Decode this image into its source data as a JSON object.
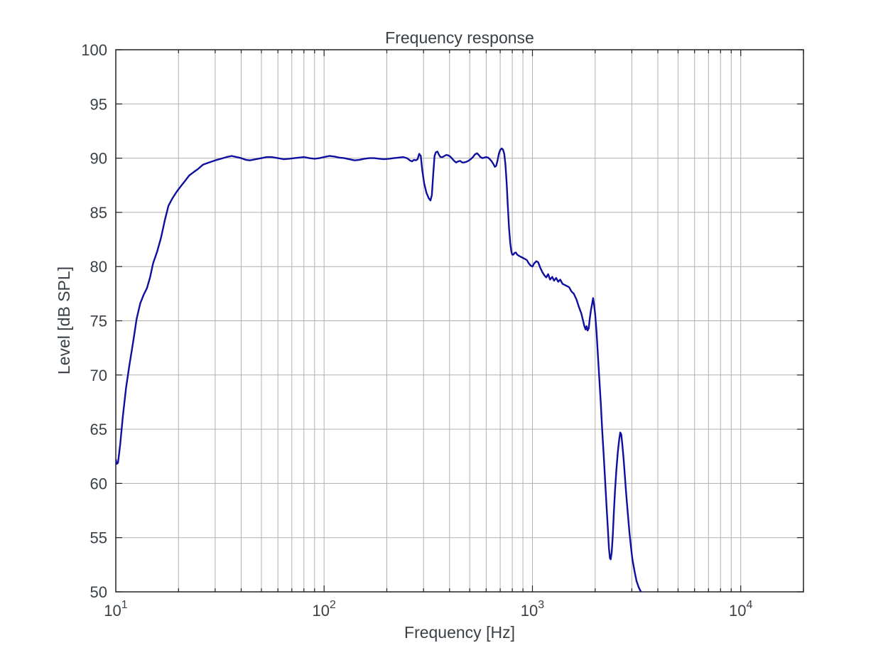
{
  "chart": {
    "title": "Frequency response",
    "xlabel": "Frequency [Hz]",
    "ylabel": "Level [dB SPL]"
  },
  "colors": {
    "line": "#0f0fa0",
    "grid": "#b0b0b0",
    "axis": "#222222",
    "text": "#3a4045",
    "background": "#ffffff"
  },
  "chart_data": {
    "type": "line",
    "title": "Frequency response",
    "xlabel": "Frequency [Hz]",
    "ylabel": "Level [dB SPL]",
    "xscale": "log",
    "xlim": [
      10,
      20000
    ],
    "ylim": [
      50,
      100
    ],
    "grid": true,
    "legend": "none",
    "x_major_ticks": [
      10,
      100,
      1000,
      10000
    ],
    "x_tick_exponents": [
      1,
      2,
      3,
      4
    ],
    "y_ticks": [
      50,
      55,
      60,
      65,
      70,
      75,
      80,
      85,
      90,
      95,
      100
    ],
    "series": [
      {
        "name": "Frequency response",
        "color": "#0f0fa0",
        "points": [
          [
            10,
            62.2
          ],
          [
            10.1,
            61.8
          ],
          [
            10.25,
            61.9
          ],
          [
            10.5,
            63.6
          ],
          [
            10.8,
            66.1
          ],
          [
            11.2,
            68.8
          ],
          [
            11.6,
            70.8
          ],
          [
            12.1,
            73.0
          ],
          [
            12.6,
            75.2
          ],
          [
            13.1,
            76.6
          ],
          [
            13.6,
            77.4
          ],
          [
            14.1,
            78.0
          ],
          [
            14.6,
            79.0
          ],
          [
            15.1,
            80.3
          ],
          [
            15.8,
            81.4
          ],
          [
            16.5,
            82.7
          ],
          [
            17.2,
            84.3
          ],
          [
            17.9,
            85.6
          ],
          [
            18.7,
            86.3
          ],
          [
            19.6,
            86.9
          ],
          [
            20.5,
            87.4
          ],
          [
            21.5,
            87.9
          ],
          [
            22.5,
            88.4
          ],
          [
            23.6,
            88.7
          ],
          [
            24.8,
            89.0
          ],
          [
            26.2,
            89.4
          ],
          [
            28,
            89.6
          ],
          [
            30,
            89.8
          ],
          [
            32,
            89.95
          ],
          [
            34,
            90.1
          ],
          [
            36,
            90.2
          ],
          [
            38,
            90.1
          ],
          [
            40,
            90.0
          ],
          [
            42,
            89.85
          ],
          [
            44,
            89.8
          ],
          [
            47,
            89.9
          ],
          [
            50,
            90.0
          ],
          [
            53,
            90.1
          ],
          [
            56,
            90.1
          ],
          [
            60,
            90.0
          ],
          [
            64,
            89.9
          ],
          [
            68,
            89.95
          ],
          [
            72,
            90.0
          ],
          [
            76,
            90.05
          ],
          [
            80,
            90.1
          ],
          [
            85,
            90.0
          ],
          [
            90,
            89.95
          ],
          [
            95,
            90.0
          ],
          [
            100,
            90.1
          ],
          [
            106,
            90.2
          ],
          [
            112,
            90.15
          ],
          [
            118,
            90.05
          ],
          [
            125,
            90.0
          ],
          [
            132,
            89.9
          ],
          [
            140,
            89.8
          ],
          [
            148,
            89.85
          ],
          [
            156,
            89.95
          ],
          [
            165,
            90.0
          ],
          [
            174,
            90.0
          ],
          [
            184,
            89.95
          ],
          [
            194,
            89.9
          ],
          [
            205,
            89.95
          ],
          [
            216,
            90.0
          ],
          [
            228,
            90.05
          ],
          [
            240,
            90.1
          ],
          [
            250,
            90.0
          ],
          [
            258,
            89.8
          ],
          [
            264,
            89.7
          ],
          [
            270,
            89.85
          ],
          [
            276,
            89.8
          ],
          [
            281,
            89.9
          ],
          [
            286,
            90.4
          ],
          [
            291,
            90.2
          ],
          [
            296,
            88.9
          ],
          [
            302,
            87.7
          ],
          [
            310,
            86.8
          ],
          [
            318,
            86.3
          ],
          [
            324,
            86.1
          ],
          [
            329,
            86.6
          ],
          [
            334,
            88.5
          ],
          [
            339,
            90.2
          ],
          [
            344,
            90.55
          ],
          [
            350,
            90.6
          ],
          [
            356,
            90.3
          ],
          [
            362,
            90.1
          ],
          [
            370,
            90.1
          ],
          [
            378,
            90.2
          ],
          [
            386,
            90.3
          ],
          [
            395,
            90.25
          ],
          [
            403,
            90.15
          ],
          [
            412,
            89.95
          ],
          [
            421,
            89.75
          ],
          [
            430,
            89.6
          ],
          [
            440,
            89.7
          ],
          [
            450,
            89.75
          ],
          [
            460,
            89.6
          ],
          [
            470,
            89.6
          ],
          [
            480,
            89.65
          ],
          [
            492,
            89.75
          ],
          [
            505,
            89.9
          ],
          [
            518,
            90.1
          ],
          [
            530,
            90.35
          ],
          [
            542,
            90.45
          ],
          [
            552,
            90.3
          ],
          [
            563,
            90.1
          ],
          [
            575,
            90.0
          ],
          [
            588,
            90.05
          ],
          [
            600,
            90.1
          ],
          [
            612,
            90.05
          ],
          [
            625,
            89.9
          ],
          [
            638,
            89.7
          ],
          [
            650,
            89.45
          ],
          [
            660,
            89.2
          ],
          [
            670,
            89.3
          ],
          [
            680,
            89.8
          ],
          [
            690,
            90.4
          ],
          [
            700,
            90.75
          ],
          [
            712,
            90.9
          ],
          [
            722,
            90.8
          ],
          [
            732,
            90.4
          ],
          [
            742,
            89.4
          ],
          [
            752,
            87.7
          ],
          [
            762,
            85.5
          ],
          [
            772,
            83.6
          ],
          [
            782,
            82.2
          ],
          [
            792,
            81.4
          ],
          [
            800,
            81.1
          ],
          [
            810,
            81.1
          ],
          [
            820,
            81.25
          ],
          [
            832,
            81.3
          ],
          [
            845,
            81.1
          ],
          [
            860,
            81.0
          ],
          [
            880,
            80.9
          ],
          [
            900,
            80.8
          ],
          [
            920,
            80.7
          ],
          [
            940,
            80.6
          ],
          [
            960,
            80.3
          ],
          [
            980,
            80.1
          ],
          [
            1000,
            80.0
          ],
          [
            1020,
            80.3
          ],
          [
            1045,
            80.5
          ],
          [
            1065,
            80.4
          ],
          [
            1090,
            79.9
          ],
          [
            1115,
            79.5
          ],
          [
            1140,
            79.2
          ],
          [
            1165,
            79.0
          ],
          [
            1190,
            79.3
          ],
          [
            1215,
            78.8
          ],
          [
            1245,
            79.05
          ],
          [
            1270,
            78.7
          ],
          [
            1300,
            78.95
          ],
          [
            1330,
            78.6
          ],
          [
            1360,
            78.8
          ],
          [
            1395,
            78.4
          ],
          [
            1430,
            78.3
          ],
          [
            1465,
            78.2
          ],
          [
            1500,
            78.1
          ],
          [
            1540,
            77.7
          ],
          [
            1580,
            77.5
          ],
          [
            1625,
            77.0
          ],
          [
            1670,
            76.3
          ],
          [
            1715,
            75.7
          ],
          [
            1750,
            75.0
          ],
          [
            1775,
            74.5
          ],
          [
            1800,
            74.2
          ],
          [
            1820,
            74.5
          ],
          [
            1840,
            74.1
          ],
          [
            1862,
            74.3
          ],
          [
            1885,
            75.2
          ],
          [
            1910,
            76.0
          ],
          [
            1935,
            76.6
          ],
          [
            1955,
            77.1
          ],
          [
            1975,
            76.5
          ],
          [
            2000,
            75.6
          ],
          [
            2030,
            74.0
          ],
          [
            2060,
            72.0
          ],
          [
            2090,
            69.9
          ],
          [
            2130,
            67.3
          ],
          [
            2160,
            65.0
          ],
          [
            2200,
            62.5
          ],
          [
            2240,
            59.8
          ],
          [
            2270,
            57.8
          ],
          [
            2300,
            55.9
          ],
          [
            2330,
            54.0
          ],
          [
            2355,
            53.1
          ],
          [
            2375,
            53.0
          ],
          [
            2400,
            53.6
          ],
          [
            2430,
            55.2
          ],
          [
            2460,
            57.3
          ],
          [
            2490,
            59.3
          ],
          [
            2530,
            61.3
          ],
          [
            2570,
            62.9
          ],
          [
            2610,
            64.1
          ],
          [
            2640,
            64.7
          ],
          [
            2670,
            64.5
          ],
          [
            2700,
            63.6
          ],
          [
            2740,
            62.2
          ],
          [
            2780,
            60.6
          ],
          [
            2820,
            59.0
          ],
          [
            2870,
            57.2
          ],
          [
            2920,
            55.5
          ],
          [
            2970,
            54.2
          ],
          [
            3020,
            53.0
          ],
          [
            3090,
            51.9
          ],
          [
            3160,
            51.0
          ],
          [
            3240,
            50.4
          ],
          [
            3320,
            50.0
          ]
        ]
      }
    ]
  }
}
